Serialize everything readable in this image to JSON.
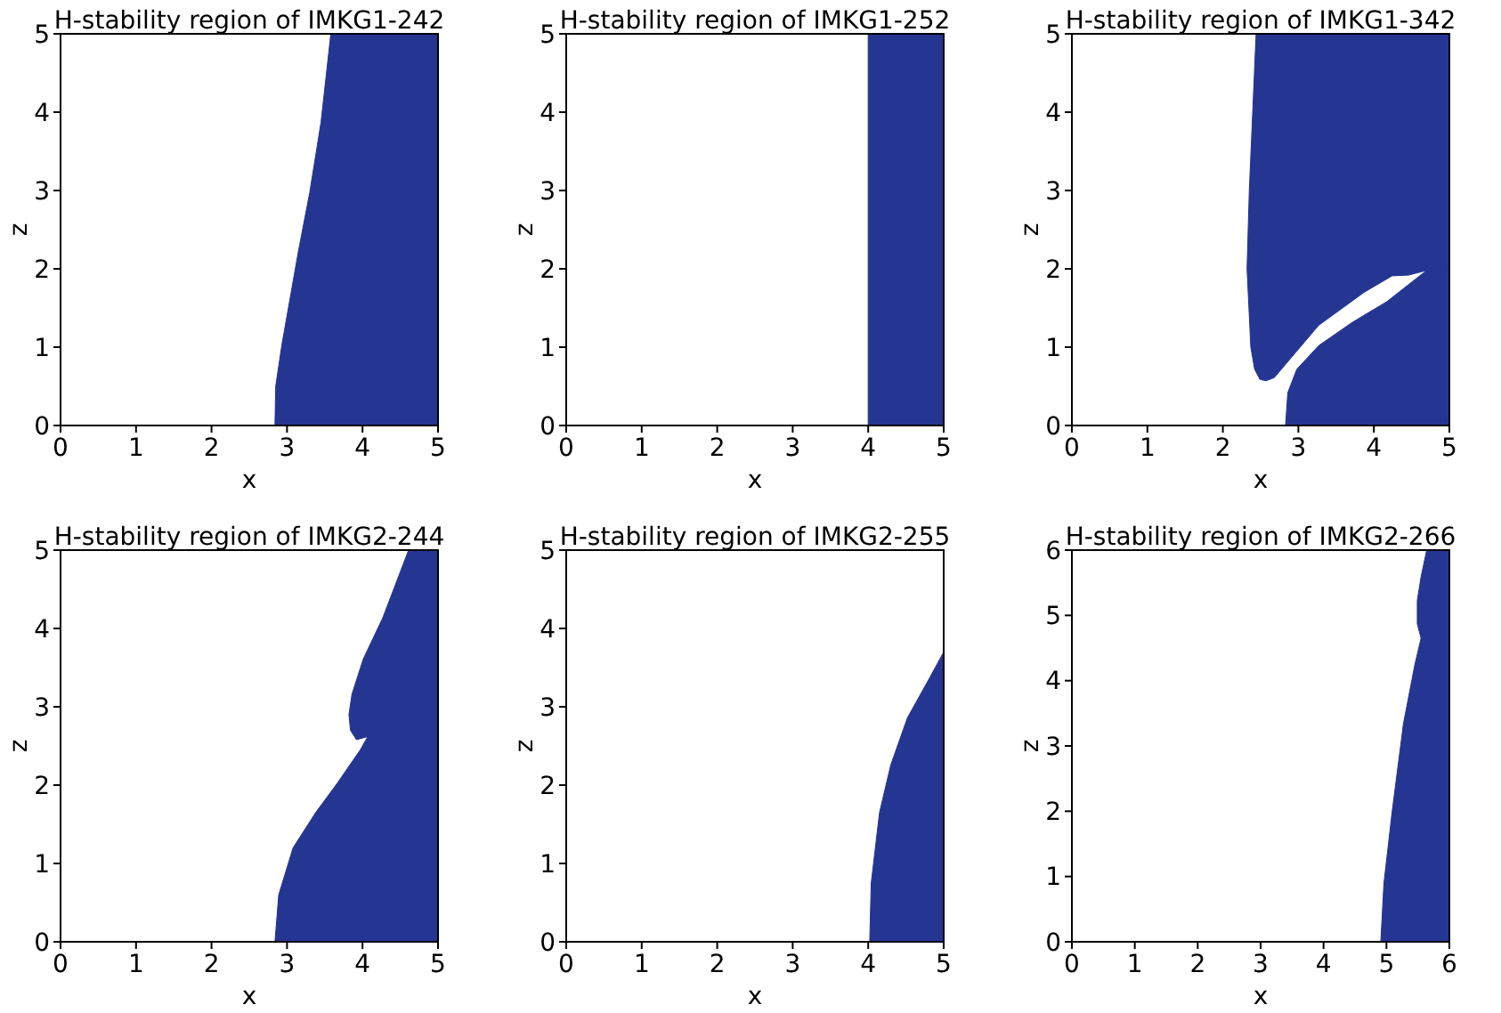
{
  "chart_data": [
    {
      "type": "area",
      "title": "H-stability region of IMKG1-242",
      "xlabel": "x",
      "ylabel": "z",
      "xlim": [
        0,
        5
      ],
      "ylim": [
        0,
        5
      ],
      "xticks": [
        0,
        1,
        2,
        3,
        4,
        5
      ],
      "yticks": [
        0,
        1,
        2,
        3,
        4,
        5
      ],
      "grid": false,
      "series": [
        {
          "color": "#253592",
          "x": [
            2.84,
            2.85,
            2.93,
            3.04,
            3.15,
            3.3,
            3.45,
            3.58,
            5,
            5
          ],
          "values": [
            0,
            0.5,
            1.02,
            1.62,
            2.22,
            2.97,
            3.87,
            5,
            5,
            0
          ]
        }
      ]
    },
    {
      "type": "area",
      "title": "H-stability region of IMKG1-252",
      "xlabel": "x",
      "ylabel": "z",
      "xlim": [
        0,
        5
      ],
      "ylim": [
        0,
        5
      ],
      "xticks": [
        0,
        1,
        2,
        3,
        4,
        5
      ],
      "yticks": [
        0,
        1,
        2,
        3,
        4,
        5
      ],
      "grid": false,
      "series": [
        {
          "color": "#253592",
          "x": [
            4,
            4,
            5,
            5
          ],
          "values": [
            0,
            5,
            5,
            0
          ]
        }
      ]
    },
    {
      "type": "area",
      "title": "H-stability region of IMKG1-342",
      "xlabel": "x",
      "ylabel": "z",
      "xlim": [
        0,
        5
      ],
      "ylim": [
        0,
        5
      ],
      "xticks": [
        0,
        1,
        2,
        3,
        4,
        5
      ],
      "yticks": [
        0,
        1,
        2,
        3,
        4,
        5
      ],
      "grid": false,
      "series": [
        {
          "color": "#253592",
          "x": [
            2.44,
            2.35,
            2.32,
            2.37,
            2.42,
            2.49,
            2.57,
            2.68,
            3.27,
            3.87,
            4.24,
            4.46,
            4.7,
            5,
            5
          ],
          "values": [
            5,
            3,
            2,
            1,
            0.72,
            0.59,
            0.57,
            0.61,
            1.28,
            1.7,
            1.91,
            1.92,
            1.98,
            1.98,
            5
          ]
        },
        {
          "color": "#253592",
          "x": [
            2.83,
            2.86,
            2.98,
            3.27,
            3.72,
            4.17,
            4.7,
            5,
            5
          ],
          "values": [
            0,
            0.42,
            0.72,
            1.02,
            1.32,
            1.58,
            1.98,
            1.98,
            0
          ]
        }
      ]
    },
    {
      "type": "area",
      "title": "H-stability region of IMKG2-244",
      "xlabel": "x",
      "ylabel": "z",
      "xlim": [
        0,
        5
      ],
      "ylim": [
        0,
        5
      ],
      "xticks": [
        0,
        1,
        2,
        3,
        4,
        5
      ],
      "yticks": [
        0,
        1,
        2,
        3,
        4,
        5
      ],
      "grid": false,
      "series": [
        {
          "color": "#253592",
          "x": [
            2.84,
            2.89,
            3.08,
            3.38,
            3.67,
            3.97,
            4.07,
            3.92,
            3.84,
            3.82,
            3.86,
            4.01,
            4.27,
            4.61,
            5,
            5
          ],
          "values": [
            0,
            0.6,
            1.2,
            1.65,
            2.03,
            2.45,
            2.62,
            2.58,
            2.7,
            2.9,
            3.16,
            3.61,
            4.14,
            5,
            5,
            0
          ]
        }
      ]
    },
    {
      "type": "area",
      "title": "H-stability region of IMKG2-255",
      "xlabel": "x",
      "ylabel": "z",
      "xlim": [
        0,
        5
      ],
      "ylim": [
        0,
        5
      ],
      "xticks": [
        0,
        1,
        2,
        3,
        4,
        5
      ],
      "yticks": [
        0,
        1,
        2,
        3,
        4,
        5
      ],
      "grid": false,
      "series": [
        {
          "color": "#253592",
          "x": [
            4.02,
            4.04,
            4.15,
            4.3,
            4.52,
            4.82,
            5,
            5
          ],
          "values": [
            0,
            0.75,
            1.65,
            2.26,
            2.86,
            3.38,
            3.7,
            0
          ]
        }
      ]
    },
    {
      "type": "area",
      "title": "H-stability region of IMKG2-266",
      "xlabel": "x",
      "ylabel": "z",
      "xlim": [
        0,
        6
      ],
      "ylim": [
        0,
        6
      ],
      "xticks": [
        0,
        1,
        2,
        3,
        4,
        5,
        6
      ],
      "yticks": [
        0,
        1,
        2,
        3,
        4,
        5,
        6
      ],
      "grid": false,
      "series": [
        {
          "color": "#253592",
          "x": [
            4.91,
            4.96,
            5.09,
            5.27,
            5.45,
            5.55,
            5.49,
            5.49,
            5.55,
            5.64,
            6,
            6
          ],
          "values": [
            0,
            0.9,
            1.99,
            3.34,
            4.24,
            4.65,
            4.87,
            5.23,
            5.59,
            6,
            6,
            0
          ]
        }
      ]
    }
  ]
}
